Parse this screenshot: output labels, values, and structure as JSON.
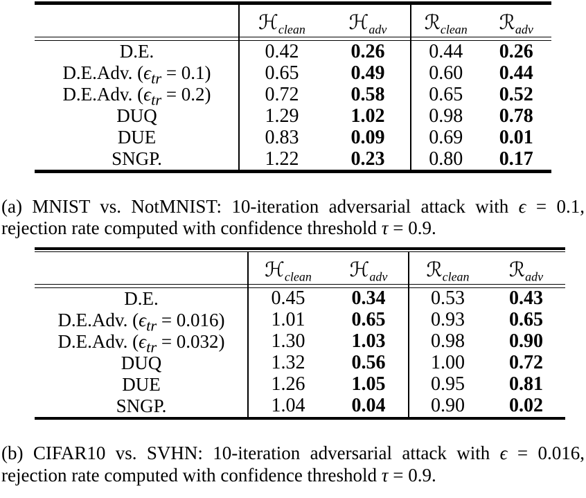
{
  "colors": {
    "text": "#000000",
    "background": "#ffffff",
    "rule": "#000000"
  },
  "tables": [
    {
      "id": "a",
      "header": {
        "cols": [
          {
            "symbol": "ℋ",
            "sub": "clean"
          },
          {
            "symbol": "ℋ",
            "sub": "adv"
          },
          {
            "symbol": "ℛ",
            "sub": "clean"
          },
          {
            "symbol": "ℛ",
            "sub": "adv"
          }
        ]
      },
      "rows": [
        {
          "text": "D.E.",
          "sym": "",
          "sub": "",
          "post": "",
          "h_clean": "0.42",
          "h_adv": "0.26",
          "r_clean": "0.44",
          "r_adv": "0.26"
        },
        {
          "text": "D.E.Adv. (",
          "sym": "ϵ",
          "sub": "tr",
          "post": " = 0.1)",
          "h_clean": "0.65",
          "h_adv": "0.49",
          "r_clean": "0.60",
          "r_adv": "0.44"
        },
        {
          "text": "D.E.Adv. (",
          "sym": "ϵ",
          "sub": "tr",
          "post": " = 0.2)",
          "h_clean": "0.72",
          "h_adv": "0.58",
          "r_clean": "0.65",
          "r_adv": "0.52"
        },
        {
          "text": "DUQ",
          "sym": "",
          "sub": "",
          "post": "",
          "h_clean": "1.29",
          "h_adv": "1.02",
          "r_clean": "0.98",
          "r_adv": "0.78"
        },
        {
          "text": "DUE",
          "sym": "",
          "sub": "",
          "post": "",
          "h_clean": "0.83",
          "h_adv": "0.09",
          "r_clean": "0.69",
          "r_adv": "0.01"
        },
        {
          "text": "SNGP.",
          "sym": "",
          "sub": "",
          "post": "",
          "h_clean": "1.22",
          "h_adv": "0.23",
          "r_clean": "0.80",
          "r_adv": "0.17"
        }
      ],
      "caption": {
        "p1": "(a) MNIST vs. NotMNIST: 10-iteration adversarial attack with ",
        "sym1": "ϵ",
        "p2": " = 0.1, rejection rate computed with confidence threshold ",
        "sym2": "τ",
        "p3": " = 0.9."
      }
    },
    {
      "id": "b",
      "header": {
        "cols": [
          {
            "symbol": "ℋ",
            "sub": "clean"
          },
          {
            "symbol": "ℋ",
            "sub": "adv"
          },
          {
            "symbol": "ℛ",
            "sub": "clean"
          },
          {
            "symbol": "ℛ",
            "sub": "adv"
          }
        ]
      },
      "rows": [
        {
          "text": "D.E.",
          "sym": "",
          "sub": "",
          "post": "",
          "h_clean": "0.45",
          "h_adv": "0.34",
          "r_clean": "0.53",
          "r_adv": "0.43"
        },
        {
          "text": "D.E.Adv. (",
          "sym": "ϵ",
          "sub": "tr",
          "post": " = 0.016)",
          "h_clean": "1.01",
          "h_adv": "0.65",
          "r_clean": "0.93",
          "r_adv": "0.65"
        },
        {
          "text": "D.E.Adv. (",
          "sym": "ϵ",
          "sub": "tr",
          "post": " = 0.032)",
          "h_clean": "1.30",
          "h_adv": "1.03",
          "r_clean": "0.98",
          "r_adv": "0.90"
        },
        {
          "text": "DUQ",
          "sym": "",
          "sub": "",
          "post": "",
          "h_clean": "1.32",
          "h_adv": "0.56",
          "r_clean": "1.00",
          "r_adv": "0.72"
        },
        {
          "text": "DUE",
          "sym": "",
          "sub": "",
          "post": "",
          "h_clean": "1.26",
          "h_adv": "1.05",
          "r_clean": "0.95",
          "r_adv": "0.81"
        },
        {
          "text": "SNGP.",
          "sym": "",
          "sub": "",
          "post": "",
          "h_clean": "1.04",
          "h_adv": "0.04",
          "r_clean": "0.90",
          "r_adv": "0.02"
        }
      ],
      "caption": {
        "p1": "(b) CIFAR10 vs. SVHN: 10-iteration adversarial attack with ",
        "sym1": "ϵ",
        "p2": " = 0.016, rejection rate computed with confidence threshold ",
        "sym2": "τ",
        "p3": " = 0.9."
      }
    }
  ]
}
